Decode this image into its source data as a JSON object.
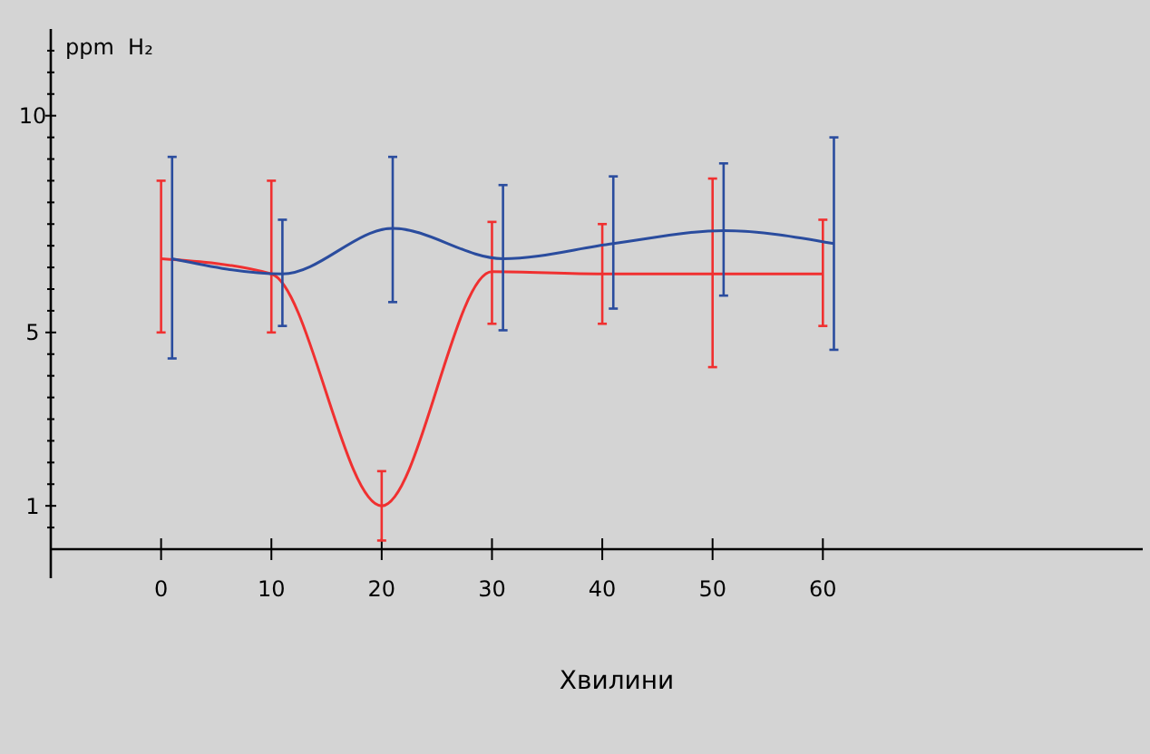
{
  "chart_data": {
    "type": "line",
    "xlabel": "Хвилини",
    "ylabel": "ppm  H₂",
    "xlim": [
      -10,
      89
    ],
    "ylim": [
      0,
      12
    ],
    "xticks": [
      0,
      10,
      20,
      30,
      40,
      50,
      60
    ],
    "yticks": [
      {
        "value": 0.5,
        "label": null
      },
      1,
      {
        "value": 1.5,
        "label": null
      },
      {
        "value": 2,
        "label": null
      },
      {
        "value": 2.5,
        "label": null
      },
      {
        "value": 3,
        "label": null
      },
      {
        "value": 3.5,
        "label": null
      },
      {
        "value": 4,
        "label": null
      },
      {
        "value": 4.5,
        "label": null
      },
      5,
      {
        "value": 5.5,
        "label": null
      },
      {
        "value": 6,
        "label": null
      },
      {
        "value": 6.5,
        "label": null
      },
      {
        "value": 7,
        "label": null
      },
      {
        "value": 7.5,
        "label": null
      },
      {
        "value": 8,
        "label": null
      },
      {
        "value": 8.5,
        "label": null
      },
      {
        "value": 9,
        "label": null
      },
      {
        "value": 9.5,
        "label": null
      },
      10,
      {
        "value": 10.5,
        "label": null
      },
      {
        "value": 11,
        "label": null
      },
      {
        "value": 11.5,
        "label": null
      }
    ],
    "grid": false,
    "marker": "none",
    "line_style": "solid",
    "series": [
      {
        "color": "#f03030",
        "x": [
          0,
          10,
          20,
          30,
          40,
          50,
          60
        ],
        "values": [
          6.7,
          6.35,
          1.0,
          6.4,
          6.35,
          6.35,
          6.35
        ],
        "errors": [
          [
            5.0,
            8.5
          ],
          [
            5.0,
            8.5
          ],
          [
            0.2,
            1.8
          ],
          [
            5.2,
            7.55
          ],
          [
            5.2,
            7.5
          ],
          [
            4.2,
            8.55
          ],
          [
            5.15,
            7.6
          ]
        ]
      },
      {
        "color": "#2a4c9e",
        "x": [
          1,
          11,
          21,
          31,
          41,
          51,
          61
        ],
        "values": [
          6.7,
          6.35,
          7.4,
          6.7,
          7.05,
          7.35,
          7.05
        ],
        "errors": [
          [
            4.4,
            9.05
          ],
          [
            5.15,
            7.6
          ],
          [
            5.7,
            9.05
          ],
          [
            5.05,
            8.4
          ],
          [
            5.55,
            8.6
          ],
          [
            5.85,
            8.9
          ],
          [
            4.6,
            9.5
          ]
        ]
      }
    ]
  }
}
